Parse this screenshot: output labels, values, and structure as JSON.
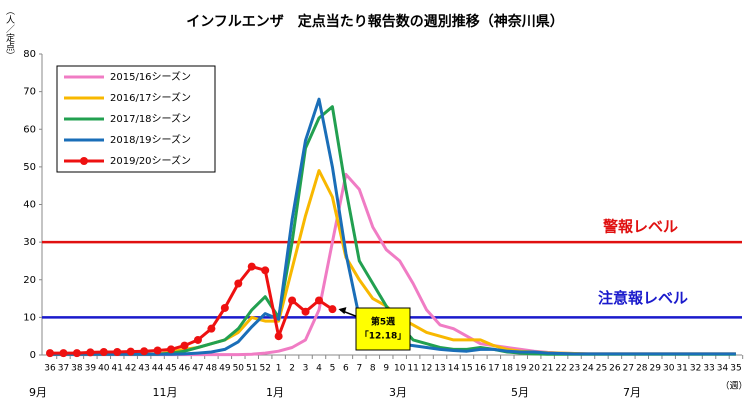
{
  "chart_data": {
    "type": "line",
    "title": "インフルエンザ　定点当たり報告数の週別推移（神奈川県）",
    "y_label": "（人／定点）",
    "x_unit": "（週）",
    "categories": [
      "36",
      "37",
      "38",
      "39",
      "40",
      "41",
      "42",
      "43",
      "44",
      "45",
      "46",
      "47",
      "48",
      "49",
      "50",
      "51",
      "52",
      "1",
      "2",
      "3",
      "4",
      "5",
      "6",
      "7",
      "8",
      "9",
      "10",
      "11",
      "12",
      "13",
      "14",
      "15",
      "16",
      "17",
      "18",
      "19",
      "20",
      "21",
      "22",
      "23",
      "24",
      "25",
      "26",
      "27",
      "28",
      "29",
      "30",
      "31",
      "32",
      "33",
      "34",
      "35"
    ],
    "month_labels": [
      "9月",
      "11月",
      "1月",
      "3月",
      "5月",
      "7月"
    ],
    "ylim": [
      0,
      80
    ],
    "yticks": [
      0,
      10,
      20,
      30,
      40,
      50,
      60,
      70,
      80
    ],
    "reference_lines": [
      {
        "value": 30,
        "label": "警報レベル",
        "color": "#e01010"
      },
      {
        "value": 10,
        "label": "注意報レベル",
        "color": "#1a1acc"
      }
    ],
    "annotation": {
      "lines": [
        "第5週",
        "「12.18」"
      ],
      "color": "#ffff00"
    },
    "series": [
      {
        "name": "2015/16シーズン",
        "color": "#f07cc4",
        "values": [
          0.1,
          0.1,
          0.1,
          0.1,
          0.1,
          0.1,
          0.1,
          0.1,
          0.1,
          0.1,
          0.1,
          0.1,
          0.1,
          0.1,
          0.1,
          0.2,
          0.5,
          1,
          2,
          4,
          12,
          30,
          48,
          44,
          34,
          28,
          25,
          19,
          12,
          8,
          7,
          5,
          3,
          2.5,
          2,
          1.5,
          1,
          0.7,
          0.5,
          0.4,
          0.3,
          0.3,
          0.3,
          0.3,
          0.3,
          0.3,
          0.3,
          0.3,
          0.3,
          0.3,
          0.3,
          0.3
        ]
      },
      {
        "name": "2016/17シーズン",
        "color": "#f8b800",
        "values": [
          0.2,
          0.2,
          0.2,
          0.2,
          0.2,
          0.2,
          0.2,
          0.2,
          0.2,
          0.8,
          1.5,
          2,
          3,
          4,
          6,
          10,
          9,
          9,
          23,
          37,
          49,
          42,
          26,
          20,
          15,
          13,
          10,
          8,
          6,
          5,
          4,
          4,
          4,
          2.5,
          1.5,
          1,
          0.8,
          0.6,
          0.5,
          0.4,
          0.3,
          0.3,
          0.3,
          0.3,
          0.3,
          0.3,
          0.3,
          0.3,
          0.3,
          0.3,
          0.3,
          0.3
        ]
      },
      {
        "name": "2017/18シーズン",
        "color": "#22a050",
        "values": [
          0.2,
          0.2,
          0.2,
          0.2,
          0.2,
          0.2,
          0.2,
          0.2,
          0.2,
          0.5,
          1,
          2,
          3,
          4,
          7,
          12,
          15.5,
          10,
          30,
          55,
          63,
          66,
          44,
          25,
          19,
          13,
          8,
          4,
          3,
          2,
          1.5,
          1.5,
          2,
          1.5,
          0.8,
          0.5,
          0.3,
          0.2,
          0.2,
          0.2,
          0.2,
          0.2,
          0.2,
          0.2,
          0.2,
          0.2,
          0.2,
          0.2,
          0.2,
          0.2,
          0.2,
          0.2
        ]
      },
      {
        "name": "2018/19シーズン",
        "color": "#1a6eb8",
        "values": [
          0.2,
          0.2,
          0.2,
          0.2,
          0.2,
          0.2,
          0.2,
          0.2,
          0.2,
          0.2,
          0.3,
          0.5,
          0.8,
          1.5,
          3.5,
          7.5,
          11,
          9.5,
          36,
          57,
          68,
          50,
          27,
          10,
          5,
          3.5,
          3,
          2.5,
          2,
          1.5,
          1.2,
          1,
          1.5,
          1.5,
          1,
          0.8,
          0.8,
          0.5,
          0.4,
          0.3,
          0.3,
          0.3,
          0.3,
          0.3,
          0.3,
          0.3,
          0.3,
          0.3,
          0.3,
          0.3,
          0.3,
          0.3
        ]
      },
      {
        "name": "2019/20シーズン",
        "color": "#ee1111",
        "values": [
          0.5,
          0.5,
          0.5,
          0.7,
          0.8,
          0.8,
          0.9,
          1,
          1.2,
          1.5,
          2.5,
          4,
          7,
          12.5,
          19,
          23.5,
          22.5,
          5,
          14.5,
          11.5,
          14.5,
          12.18,
          null,
          null,
          null,
          null,
          null,
          null,
          null,
          null,
          null,
          null,
          null,
          null,
          null,
          null,
          null,
          null,
          null,
          null,
          null,
          null,
          null,
          null,
          null,
          null,
          null,
          null,
          null,
          null,
          null,
          null
        ],
        "markers": true
      }
    ]
  }
}
